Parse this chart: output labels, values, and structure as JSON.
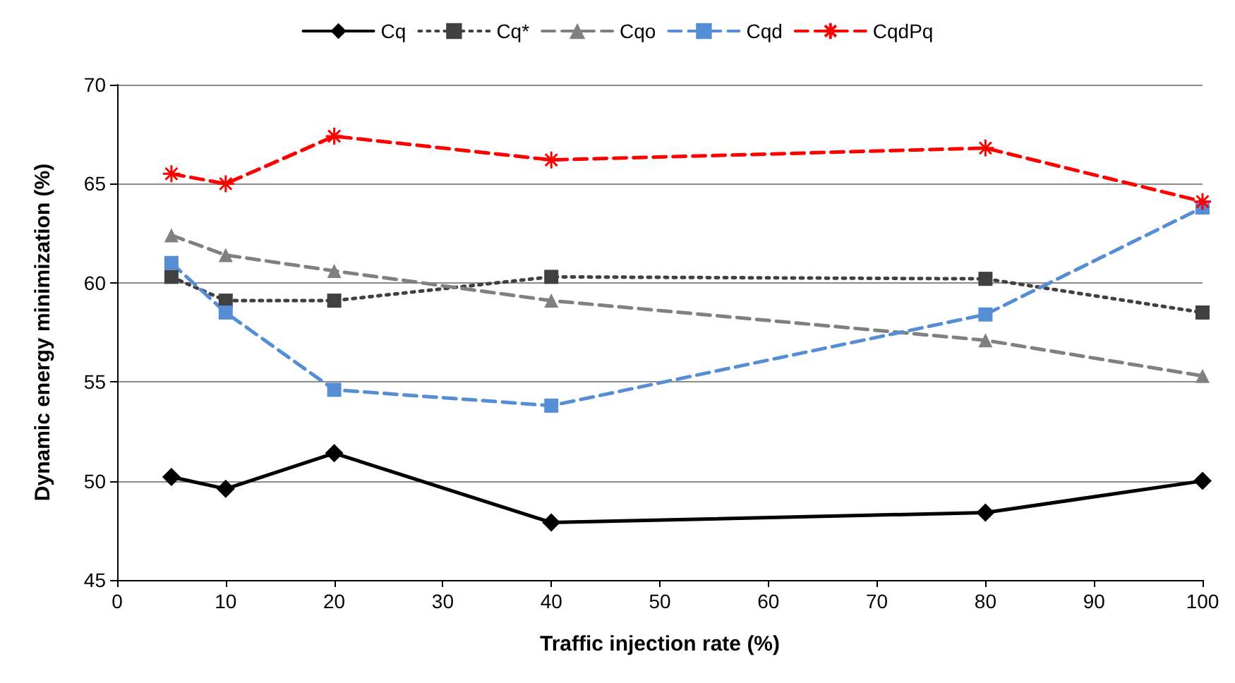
{
  "chart_data": {
    "type": "line",
    "xlabel": "Traffic injection rate (%)",
    "ylabel": "Dynamic energy minimization (%)",
    "x": [
      5,
      10,
      20,
      40,
      80,
      100
    ],
    "xlim": [
      0,
      100
    ],
    "xticks": [
      0,
      10,
      20,
      30,
      40,
      50,
      60,
      70,
      80,
      90,
      100
    ],
    "ylim": [
      45,
      70
    ],
    "yticks": [
      45,
      50,
      55,
      60,
      65,
      70
    ],
    "grid": "y",
    "legend": "top",
    "series": [
      {
        "name": "Cq",
        "color": "#000000",
        "marker": "diamond",
        "line_style": "solid",
        "values": [
          50.2,
          49.6,
          51.4,
          47.9,
          48.4,
          50.0
        ]
      },
      {
        "name": "Cq*",
        "color": "#404040",
        "marker": "square",
        "line_style": "dotted",
        "values": [
          60.3,
          59.1,
          59.1,
          60.3,
          60.2,
          58.5
        ]
      },
      {
        "name": "Cqo",
        "color": "#808080",
        "marker": "triangle",
        "line_style": "dashed",
        "values": [
          62.4,
          61.4,
          60.6,
          59.1,
          57.1,
          55.3
        ]
      },
      {
        "name": "Cqd",
        "color": "#558ed5",
        "marker": "square",
        "line_style": "dashed",
        "values": [
          61.0,
          58.5,
          54.6,
          53.8,
          58.4,
          63.8
        ]
      },
      {
        "name": "CqdPq",
        "color": "#ff0000",
        "marker": "cross",
        "line_style": "dashed",
        "values": [
          65.5,
          65.0,
          67.4,
          66.2,
          66.8,
          64.1
        ]
      }
    ]
  }
}
